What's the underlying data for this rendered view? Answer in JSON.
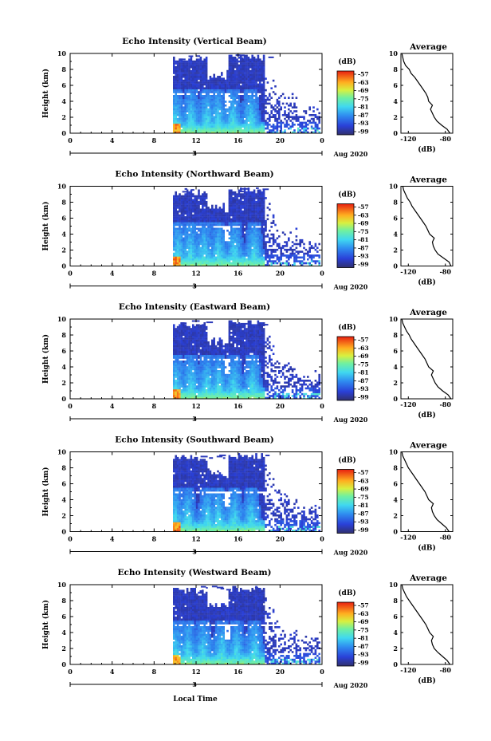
{
  "figure": {
    "xlabel": "Local Time",
    "panel_ylabel": "Height (km)",
    "profile_title": "Average",
    "profile_xlabel": "(dB)",
    "colorbar_unit": "(dB)",
    "colorbar_ticks": [
      "-57",
      "-63",
      "-69",
      "-75",
      "-81",
      "-87",
      "-93",
      "-99"
    ],
    "date_day": "3",
    "date_label": "Aug 2020"
  },
  "chart_data": [
    {
      "type": "heatmap",
      "title": "Echo Intensity (Vertical Beam)",
      "xlabel": "Local Time",
      "ylabel": "Height (km)",
      "x_ticks": [
        "0",
        "4",
        "8",
        "12",
        "16",
        "20",
        "0"
      ],
      "y_ticks": [
        "0",
        "2",
        "4",
        "6",
        "8",
        "10"
      ],
      "xlim": [
        0,
        24
      ],
      "ylim": [
        0,
        10
      ],
      "data_start_hour": 9.8,
      "colorbar_unit": "(dB)",
      "colorbar_ticks": [
        "-57",
        "-63",
        "-69",
        "-75",
        "-81",
        "-87",
        "-93",
        "-99"
      ],
      "profile": {
        "title": "Average",
        "xlabel": "(dB)",
        "x_ticks": [
          "-120",
          "-80"
        ],
        "xlim": [
          -128,
          -72
        ],
        "height_km": [
          0,
          0.5,
          1,
          1.5,
          2,
          2.5,
          3,
          3.5,
          4,
          4.5,
          5,
          5.5,
          6,
          6.5,
          7,
          7.5,
          8,
          8.5,
          9,
          9.5,
          10
        ],
        "value_db": [
          -75,
          -78,
          -84,
          -89,
          -92,
          -94,
          -96,
          -94,
          -98,
          -99,
          -101,
          -104,
          -107,
          -110,
          -113,
          -117,
          -119,
          -123,
          -125,
          -126,
          -127
        ]
      }
    },
    {
      "type": "heatmap",
      "title": "Echo Intensity (Northward Beam)",
      "xlabel": "Local Time",
      "ylabel": "Height (km)",
      "x_ticks": [
        "0",
        "4",
        "8",
        "12",
        "16",
        "20",
        "0"
      ],
      "y_ticks": [
        "0",
        "2",
        "4",
        "6",
        "8",
        "10"
      ],
      "xlim": [
        0,
        24
      ],
      "ylim": [
        0,
        10
      ],
      "data_start_hour": 9.8,
      "colorbar_unit": "(dB)",
      "colorbar_ticks": [
        "-57",
        "-63",
        "-69",
        "-75",
        "-81",
        "-87",
        "-93",
        "-99"
      ],
      "profile": {
        "title": "Average",
        "xlabel": "(dB)",
        "x_ticks": [
          "-120",
          "-80"
        ],
        "xlim": [
          -128,
          -72
        ],
        "height_km": [
          0,
          0.5,
          1,
          1.5,
          2,
          2.5,
          3,
          3.5,
          4,
          4.5,
          5,
          5.5,
          6,
          6.5,
          7,
          7.5,
          8,
          8.5,
          9,
          9.5,
          10
        ],
        "value_db": [
          -74,
          -76,
          -82,
          -88,
          -91,
          -93,
          -94,
          -92,
          -97,
          -99,
          -101,
          -104,
          -107,
          -110,
          -113,
          -116,
          -118,
          -121,
          -123,
          -125,
          -126
        ]
      }
    },
    {
      "type": "heatmap",
      "title": "Echo Intensity (Eastward Beam)",
      "xlabel": "Local Time",
      "ylabel": "Height (km)",
      "x_ticks": [
        "0",
        "4",
        "8",
        "12",
        "16",
        "20",
        "0"
      ],
      "y_ticks": [
        "0",
        "2",
        "4",
        "6",
        "8",
        "10"
      ],
      "xlim": [
        0,
        24
      ],
      "ylim": [
        0,
        10
      ],
      "data_start_hour": 9.8,
      "colorbar_unit": "(dB)",
      "colorbar_ticks": [
        "-57",
        "-63",
        "-69",
        "-75",
        "-81",
        "-87",
        "-93",
        "-99"
      ],
      "profile": {
        "title": "Average",
        "xlabel": "(dB)",
        "x_ticks": [
          "-120",
          "-80"
        ],
        "xlim": [
          -128,
          -72
        ],
        "height_km": [
          0,
          0.5,
          1,
          1.5,
          2,
          2.5,
          3,
          3.5,
          4,
          4.5,
          5,
          5.5,
          6,
          6.5,
          7,
          7.5,
          8,
          8.5,
          9,
          9.5,
          10
        ],
        "value_db": [
          -74,
          -77,
          -83,
          -88,
          -91,
          -93,
          -95,
          -93,
          -98,
          -100,
          -102,
          -105,
          -108,
          -111,
          -114,
          -117,
          -119,
          -122,
          -124,
          -126,
          -127
        ]
      }
    },
    {
      "type": "heatmap",
      "title": "Echo Intensity (Southward Beam)",
      "xlabel": "Local Time",
      "ylabel": "Height (km)",
      "x_ticks": [
        "0",
        "4",
        "8",
        "12",
        "16",
        "20",
        "0"
      ],
      "y_ticks": [
        "0",
        "2",
        "4",
        "6",
        "8",
        "10"
      ],
      "xlim": [
        0,
        24
      ],
      "ylim": [
        0,
        10
      ],
      "data_start_hour": 9.8,
      "colorbar_unit": "(dB)",
      "colorbar_ticks": [
        "-57",
        "-63",
        "-69",
        "-75",
        "-81",
        "-87",
        "-93",
        "-99"
      ],
      "profile": {
        "title": "Average",
        "xlabel": "(dB)",
        "x_ticks": [
          "-120",
          "-80"
        ],
        "xlim": [
          -128,
          -72
        ],
        "height_km": [
          0,
          0.5,
          1,
          1.5,
          2,
          2.5,
          3,
          3.5,
          4,
          4.5,
          5,
          5.5,
          6,
          6.5,
          7,
          7.5,
          8,
          8.5,
          9,
          9.5,
          10
        ],
        "value_db": [
          -76,
          -79,
          -84,
          -89,
          -92,
          -94,
          -95,
          -93,
          -98,
          -100,
          -102,
          -105,
          -108,
          -111,
          -114,
          -117,
          -120,
          -122,
          -124,
          -126,
          -127
        ]
      }
    },
    {
      "type": "heatmap",
      "title": "Echo Intensity (Westward Beam)",
      "xlabel": "Local Time",
      "ylabel": "Height (km)",
      "x_ticks": [
        "0",
        "4",
        "8",
        "12",
        "16",
        "20",
        "0"
      ],
      "y_ticks": [
        "0",
        "2",
        "4",
        "6",
        "8",
        "10"
      ],
      "xlim": [
        0,
        24
      ],
      "ylim": [
        0,
        10
      ],
      "data_start_hour": 9.8,
      "colorbar_unit": "(dB)",
      "colorbar_ticks": [
        "-57",
        "-63",
        "-69",
        "-75",
        "-81",
        "-87",
        "-93",
        "-99"
      ],
      "profile": {
        "title": "Average",
        "xlabel": "(dB)",
        "x_ticks": [
          "-120",
          "-80"
        ],
        "xlim": [
          -128,
          -72
        ],
        "height_km": [
          0,
          0.5,
          1,
          1.5,
          2,
          2.5,
          3,
          3.5,
          4,
          4.5,
          5,
          5.5,
          6,
          6.5,
          7,
          7.5,
          8,
          8.5,
          9,
          9.5,
          10
        ],
        "value_db": [
          -75,
          -78,
          -83,
          -88,
          -92,
          -94,
          -95,
          -93,
          -97,
          -99,
          -101,
          -104,
          -107,
          -110,
          -113,
          -116,
          -119,
          -122,
          -124,
          -126,
          -127
        ]
      }
    }
  ]
}
